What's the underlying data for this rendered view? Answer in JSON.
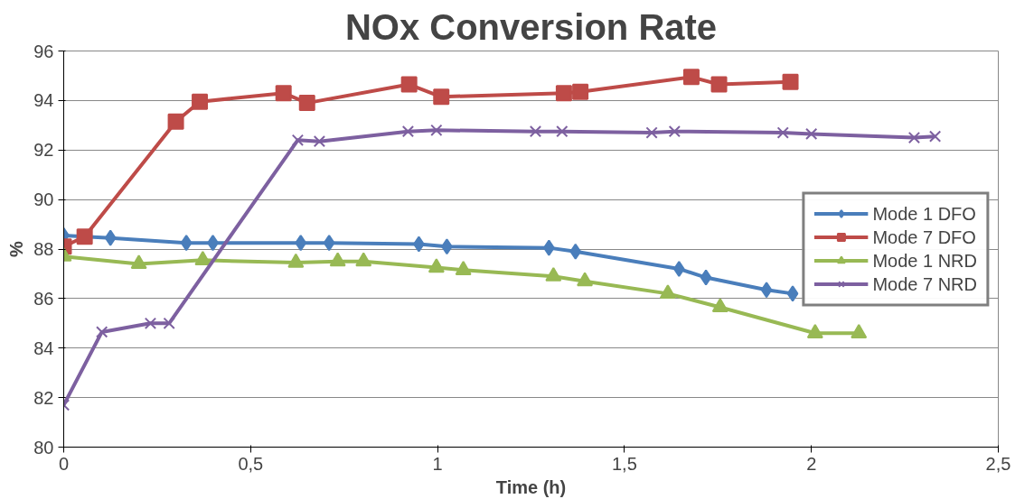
{
  "chart_data": {
    "type": "line",
    "title": "NOx Conversion Rate",
    "xlabel": "Time (h)",
    "ylabel": "%",
    "xlim": [
      0,
      2.5
    ],
    "xticks": [
      0,
      {
        "value": 0.5,
        "label": "0,5"
      },
      1,
      {
        "value": 1.5,
        "label": "1,5"
      },
      2,
      {
        "value": 2.5,
        "label": "2,5"
      }
    ],
    "ylim": [
      80,
      96
    ],
    "yticks": [
      80,
      82,
      84,
      86,
      88,
      90,
      92,
      94,
      96
    ],
    "grid": "y",
    "legend": "right",
    "series": [
      {
        "name": "Mode 1 DFO",
        "color": "#4a7ebb",
        "marker": "diamond",
        "x": [
          0,
          0.125,
          0.328,
          0.399,
          0.634,
          0.71,
          0.95,
          1.025,
          1.298,
          1.369,
          1.646,
          1.718,
          1.88,
          1.95
        ],
        "values": [
          88.55,
          88.45,
          88.25,
          88.25,
          88.25,
          88.25,
          88.2,
          88.1,
          88.05,
          87.9,
          87.2,
          86.85,
          86.35,
          86.2
        ]
      },
      {
        "name": "Mode 7 DFO",
        "color": "#be4b48",
        "marker": "square",
        "x": [
          0,
          0.056,
          0.3,
          0.364,
          0.588,
          0.651,
          0.924,
          1.01,
          1.338,
          1.382,
          1.679,
          1.753,
          1.944
        ],
        "values": [
          88.1,
          88.5,
          93.15,
          93.95,
          94.3,
          93.9,
          94.65,
          94.15,
          94.3,
          94.35,
          94.95,
          94.65,
          94.75
        ]
      },
      {
        "name": "Mode 1 NRD",
        "color": "#98b954",
        "marker": "triangle",
        "x": [
          0,
          0.201,
          0.372,
          0.621,
          0.733,
          0.802,
          0.997,
          1.069,
          1.31,
          1.394,
          1.616,
          1.756,
          2.01,
          2.127
        ],
        "values": [
          87.7,
          87.4,
          87.55,
          87.45,
          87.5,
          87.5,
          87.25,
          87.15,
          86.9,
          86.7,
          86.2,
          85.65,
          84.6,
          84.6
        ]
      },
      {
        "name": "Mode 7 NRD",
        "color": "#7d60a0",
        "marker": "cross",
        "x": [
          0,
          0.102,
          0.232,
          0.282,
          0.626,
          0.684,
          0.921,
          0.997,
          1.262,
          1.333,
          1.573,
          1.634,
          1.924,
          2.0,
          2.275,
          2.331
        ],
        "values": [
          81.7,
          84.65,
          85.0,
          85.0,
          92.4,
          92.35,
          92.75,
          92.8,
          92.75,
          92.75,
          92.7,
          92.75,
          92.7,
          92.65,
          92.5,
          92.55
        ]
      }
    ]
  }
}
